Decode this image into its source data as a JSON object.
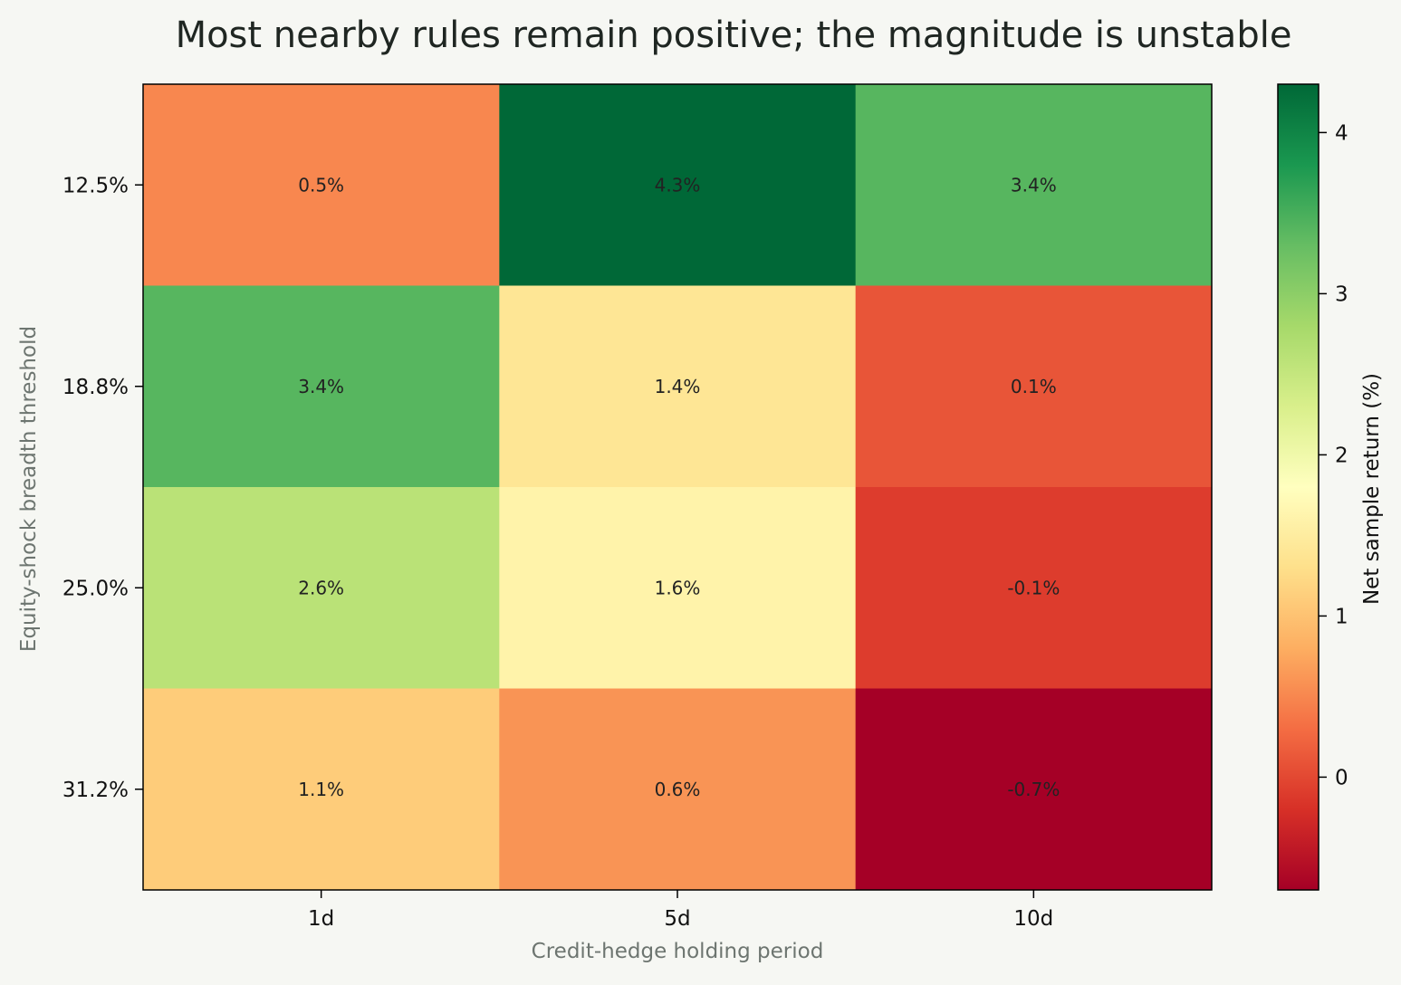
{
  "chart_data": {
    "type": "heatmap",
    "title": "Most nearby rules remain positive; the magnitude is unstable",
    "xlabel": "Credit-hedge holding period",
    "ylabel": "Equity-shock breadth threshold",
    "x_categories": [
      "1d",
      "5d",
      "10d"
    ],
    "y_categories": [
      "12.5%",
      "18.8%",
      "25.0%",
      "31.2%"
    ],
    "values": [
      [
        0.5,
        4.3,
        3.4
      ],
      [
        3.4,
        1.4,
        0.1
      ],
      [
        2.6,
        1.6,
        -0.1
      ],
      [
        1.1,
        0.6,
        -0.7
      ]
    ],
    "cell_labels": [
      [
        "0.5%",
        "4.3%",
        "3.4%"
      ],
      [
        "3.4%",
        "1.4%",
        "0.1%"
      ],
      [
        "2.6%",
        "1.6%",
        "-0.1%"
      ],
      [
        "1.1%",
        "0.6%",
        "-0.7%"
      ]
    ],
    "colorbar": {
      "label": "Net sample return (%)",
      "vmin": -0.7,
      "vmax": 4.3,
      "ticks": [
        0,
        1,
        2,
        3,
        4
      ],
      "colormap": "RdYlGn"
    },
    "grid": false,
    "legend": "none"
  },
  "colors": {
    "background": "#f6f7f3",
    "title_text": "#1f2622",
    "axis_label_text": "#6d7570",
    "tick_text": "#111111",
    "cell_text": "#222222"
  }
}
